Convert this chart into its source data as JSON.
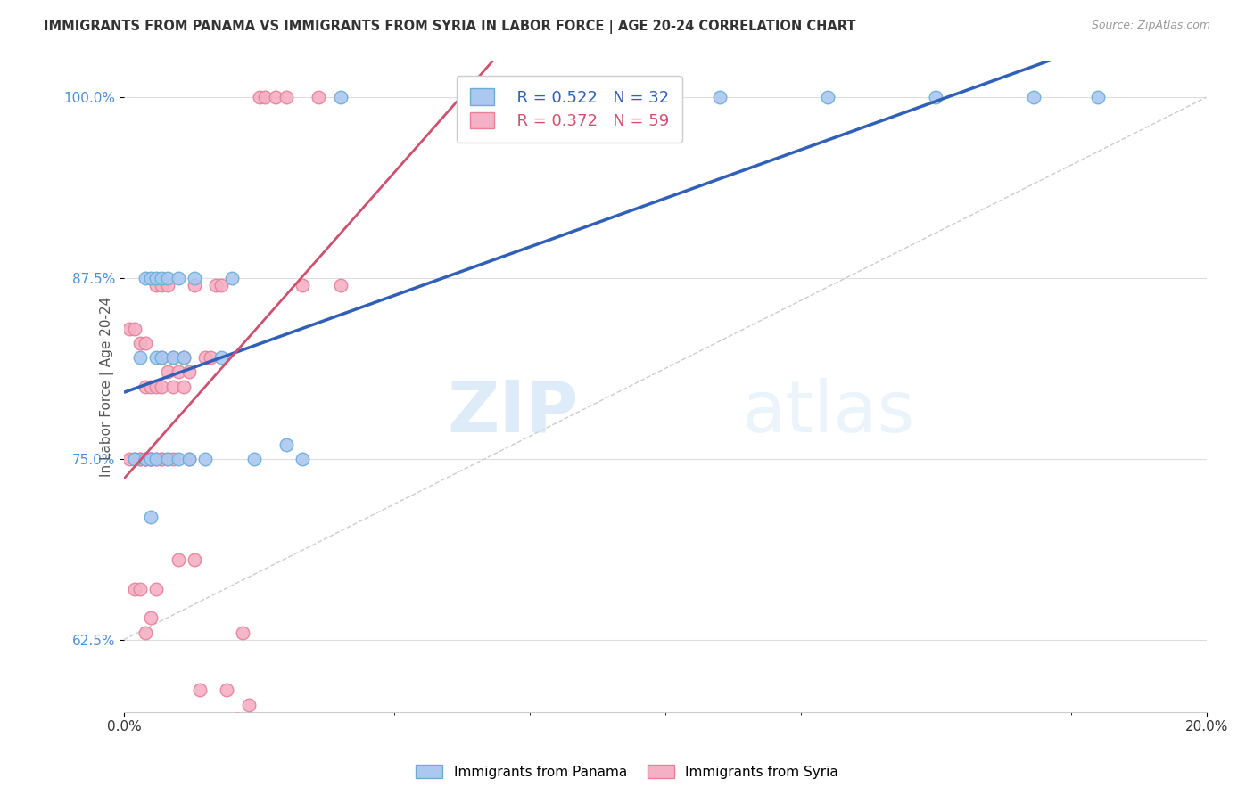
{
  "title": "IMMIGRANTS FROM PANAMA VS IMMIGRANTS FROM SYRIA IN LABOR FORCE | AGE 20-24 CORRELATION CHART",
  "source": "Source: ZipAtlas.com",
  "ylabel_label": "In Labor Force | Age 20-24",
  "xlim": [
    0.0,
    0.2
  ],
  "ylim": [
    0.575,
    1.025
  ],
  "xlabel_ticks": [
    "0.0%",
    "20.0%"
  ],
  "xlabel_vals": [
    0.0,
    0.2
  ],
  "ylabel_ticks": [
    "62.5%",
    "75.0%",
    "87.5%",
    "100.0%"
  ],
  "ylabel_vals": [
    0.625,
    0.75,
    0.875,
    1.0
  ],
  "panama_color": "#aac8f0",
  "syria_color": "#f4b0c4",
  "panama_edge": "#6aaed6",
  "syria_edge": "#e88098",
  "legend_r_panama": "R = 0.522",
  "legend_n_panama": "N = 32",
  "legend_r_syria": "R = 0.372",
  "legend_n_syria": "N = 59",
  "trend_panama_color": "#3060b8",
  "trend_syria_color": "#d05070",
  "watermark_zip": "ZIP",
  "watermark_atlas": "atlas",
  "panama_x": [
    0.002,
    0.003,
    0.004,
    0.004,
    0.005,
    0.005,
    0.005,
    0.006,
    0.006,
    0.006,
    0.007,
    0.007,
    0.008,
    0.008,
    0.009,
    0.01,
    0.01,
    0.011,
    0.012,
    0.013,
    0.015,
    0.018,
    0.02,
    0.024,
    0.03,
    0.033,
    0.04,
    0.11,
    0.13,
    0.15,
    0.168,
    0.18
  ],
  "panama_y": [
    0.75,
    0.82,
    0.75,
    0.875,
    0.875,
    0.75,
    0.71,
    0.875,
    0.82,
    0.75,
    0.875,
    0.82,
    0.875,
    0.75,
    0.82,
    0.875,
    0.75,
    0.82,
    0.75,
    0.875,
    0.75,
    0.82,
    0.875,
    0.75,
    0.76,
    0.75,
    1.0,
    1.0,
    1.0,
    1.0,
    1.0,
    1.0
  ],
  "syria_x": [
    0.001,
    0.001,
    0.002,
    0.002,
    0.002,
    0.002,
    0.003,
    0.003,
    0.003,
    0.003,
    0.004,
    0.004,
    0.004,
    0.004,
    0.004,
    0.005,
    0.005,
    0.005,
    0.005,
    0.005,
    0.006,
    0.006,
    0.006,
    0.006,
    0.007,
    0.007,
    0.007,
    0.007,
    0.007,
    0.008,
    0.008,
    0.008,
    0.009,
    0.009,
    0.009,
    0.01,
    0.01,
    0.011,
    0.011,
    0.012,
    0.012,
    0.013,
    0.013,
    0.014,
    0.015,
    0.016,
    0.017,
    0.018,
    0.019,
    0.021,
    0.022,
    0.023,
    0.025,
    0.026,
    0.028,
    0.03,
    0.033,
    0.036,
    0.04
  ],
  "syria_y": [
    0.75,
    0.84,
    0.75,
    0.75,
    0.84,
    0.66,
    0.83,
    0.75,
    0.75,
    0.66,
    0.83,
    0.75,
    0.75,
    0.8,
    0.63,
    0.75,
    0.75,
    0.75,
    0.8,
    0.64,
    0.87,
    0.75,
    0.66,
    0.8,
    0.87,
    0.75,
    0.75,
    0.8,
    0.82,
    0.81,
    0.75,
    0.87,
    0.75,
    0.8,
    0.82,
    0.81,
    0.68,
    0.8,
    0.82,
    0.81,
    0.75,
    0.68,
    0.87,
    0.59,
    0.82,
    0.82,
    0.87,
    0.87,
    0.59,
    0.57,
    0.63,
    0.58,
    1.0,
    1.0,
    1.0,
    1.0,
    0.87,
    1.0,
    0.87
  ]
}
